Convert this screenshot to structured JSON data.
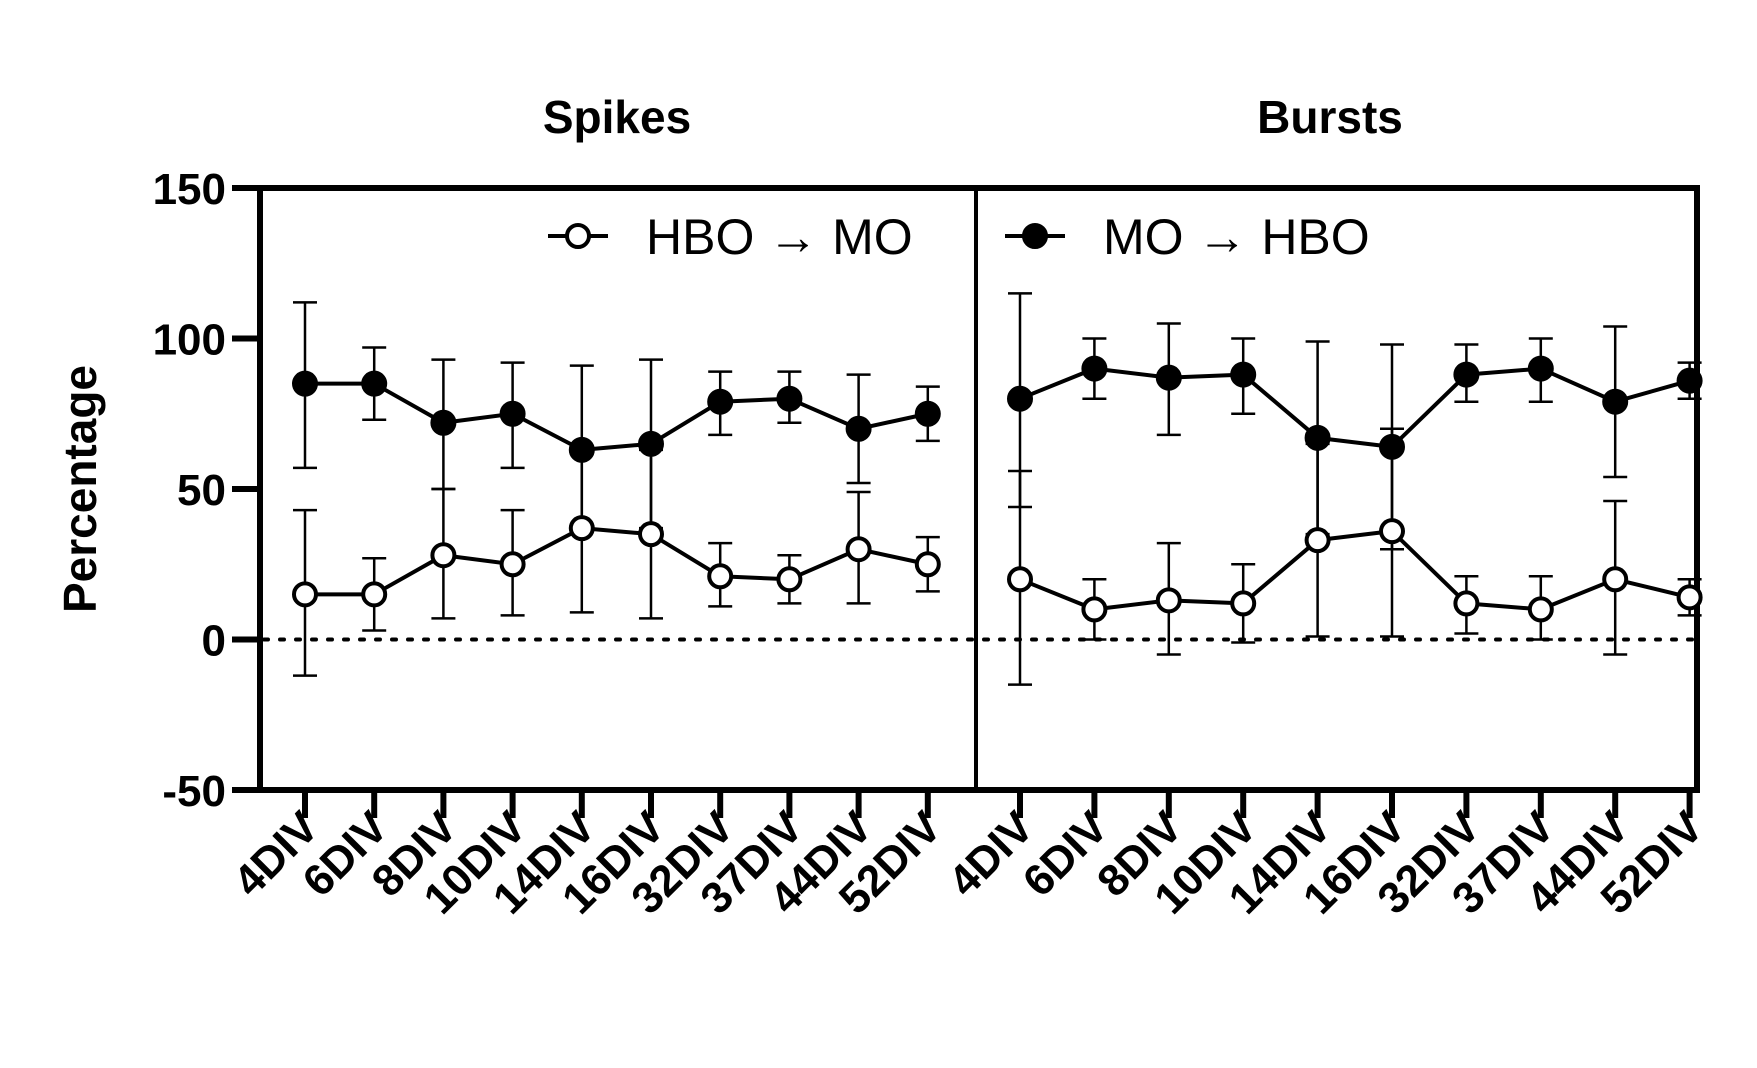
{
  "chart_data": {
    "type": "line",
    "ylabel": "Percentage",
    "ylim": [
      -50,
      150
    ],
    "yticks": [
      "150",
      "100",
      "50",
      "0",
      "-50"
    ],
    "reference_line": {
      "y": 0,
      "style": "dotted"
    },
    "grid": false,
    "legend": [
      {
        "label": "HBO → MO",
        "marker": "open-circle",
        "placement": "top-left-panel"
      },
      {
        "label": "MO → HBO",
        "marker": "filled-circle",
        "placement": "top-right-panel"
      }
    ],
    "panels": [
      {
        "title": "Spikes",
        "categories": [
          "4DIV",
          "6DIV",
          "8DIV",
          "10DIV",
          "14DIV",
          "16DIV",
          "32DIV",
          "37DIV",
          "44DIV",
          "52DIV"
        ],
        "series": [
          {
            "name": "MO → HBO",
            "marker": "filled",
            "values": [
              85,
              85,
              72,
              75,
              63,
              65,
              79,
              80,
              70,
              75
            ],
            "err_low": [
              57,
              73,
              50,
              57,
              36,
              37,
              68,
              72,
              52,
              66
            ],
            "err_high": [
              112,
              97,
              93,
              92,
              91,
              93,
              89,
              89,
              88,
              84
            ]
          },
          {
            "name": "HBO → MO",
            "marker": "open",
            "values": [
              15,
              15,
              28,
              25,
              37,
              35,
              21,
              20,
              30,
              25
            ],
            "err_low": [
              -12,
              3,
              7,
              8,
              9,
              7,
              11,
              12,
              12,
              16
            ],
            "err_high": [
              43,
              27,
              50,
              43,
              64,
              63,
              32,
              28,
              49,
              34
            ]
          }
        ]
      },
      {
        "title": "Bursts",
        "categories": [
          "4DIV",
          "6DIV",
          "8DIV",
          "10DIV",
          "14DIV",
          "16DIV",
          "32DIV",
          "37DIV",
          "44DIV",
          "52DIV"
        ],
        "series": [
          {
            "name": "MO → HBO",
            "marker": "filled",
            "values": [
              80,
              90,
              87,
              88,
              67,
              64,
              88,
              90,
              79,
              86
            ],
            "err_low": [
              44,
              80,
              68,
              75,
              35,
              30,
              79,
              79,
              54,
              80
            ],
            "err_high": [
              115,
              100,
              105,
              100,
              99,
              98,
              98,
              100,
              104,
              92
            ]
          },
          {
            "name": "HBO → MO",
            "marker": "open",
            "values": [
              20,
              10,
              13,
              12,
              33,
              36,
              12,
              10,
              20,
              14
            ],
            "err_low": [
              -15,
              0,
              -5,
              -1,
              1,
              1,
              2,
              0,
              -5,
              8
            ],
            "err_high": [
              56,
              20,
              32,
              25,
              65,
              70,
              21,
              21,
              46,
              20
            ]
          }
        ]
      }
    ]
  }
}
